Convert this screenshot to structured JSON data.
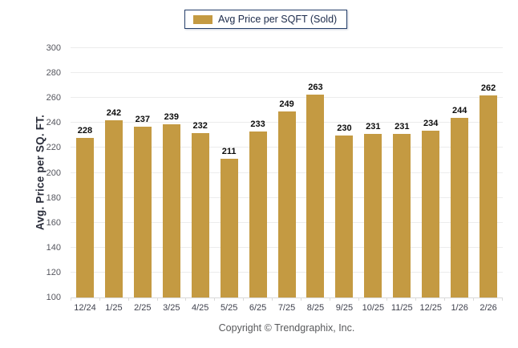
{
  "legend": {
    "label": "Avg Price per SQFT (Sold)"
  },
  "chart_data": {
    "type": "bar",
    "title": "Avg Price per SQFT (Sold)",
    "categories": [
      "12/24",
      "1/25",
      "2/25",
      "3/25",
      "4/25",
      "5/25",
      "6/25",
      "7/25",
      "8/25",
      "9/25",
      "10/25",
      "11/25",
      "12/25",
      "1/26",
      "2/26"
    ],
    "values": [
      228,
      242,
      237,
      239,
      232,
      211,
      233,
      249,
      263,
      230,
      231,
      231,
      234,
      244,
      262
    ],
    "xlabel": "",
    "ylabel": "Avg. Price per SQ. FT.",
    "ylim": [
      100,
      300
    ],
    "ytick_step": 20,
    "grid": true,
    "legend_position": "top-center",
    "bar_color": "#c49a42"
  },
  "colors": {
    "bar": "#c49a42",
    "legend_border": "#26406b",
    "gridline": "#ececec",
    "axis_line": "#d9d9d9",
    "value_label": "#0c0c0c",
    "tick_label": "#55565e",
    "edge_vignette": "#d9e6f6"
  },
  "footer": {
    "copyright": "Copyright © Trendgraphix, Inc."
  }
}
